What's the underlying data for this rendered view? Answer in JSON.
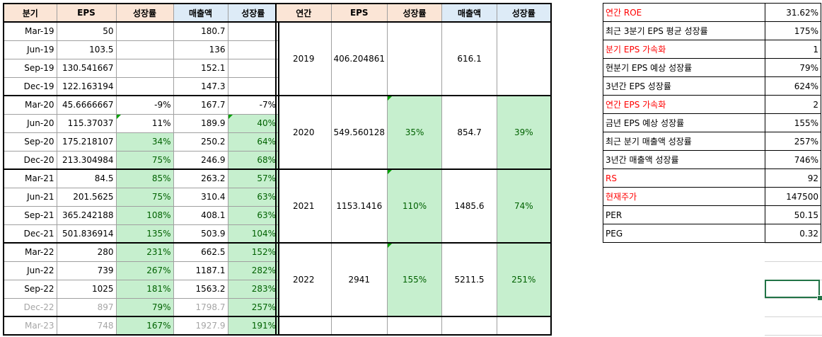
{
  "quarterly": {
    "headers": [
      "분기",
      "EPS",
      "성장률",
      "매출액",
      "성장률"
    ],
    "rows": [
      {
        "quarter": "Mar-19",
        "eps": "50",
        "eps_growth": "",
        "sales": "180.7",
        "sales_growth": ""
      },
      {
        "quarter": "Jun-19",
        "eps": "103.5",
        "eps_growth": "",
        "sales": "136",
        "sales_growth": ""
      },
      {
        "quarter": "Sep-19",
        "eps": "130.541667",
        "eps_growth": "",
        "sales": "152.1",
        "sales_growth": ""
      },
      {
        "quarter": "Dec-19",
        "eps": "122.163194",
        "eps_growth": "",
        "sales": "147.3",
        "sales_growth": ""
      },
      {
        "quarter": "Mar-20",
        "eps": "45.6666667",
        "eps_growth": "-9%",
        "sales": "167.7",
        "sales_growth": "-7%"
      },
      {
        "quarter": "Jun-20",
        "eps": "115.37037",
        "eps_growth": "11%",
        "sales": "189.9",
        "sales_growth": "40%"
      },
      {
        "quarter": "Sep-20",
        "eps": "175.218107",
        "eps_growth": "34%",
        "sales": "250.2",
        "sales_growth": "64%"
      },
      {
        "quarter": "Dec-20",
        "eps": "213.304984",
        "eps_growth": "75%",
        "sales": "246.9",
        "sales_growth": "68%"
      },
      {
        "quarter": "Mar-21",
        "eps": "84.5",
        "eps_growth": "85%",
        "sales": "263.2",
        "sales_growth": "57%"
      },
      {
        "quarter": "Jun-21",
        "eps": "201.5625",
        "eps_growth": "75%",
        "sales": "310.4",
        "sales_growth": "63%"
      },
      {
        "quarter": "Sep-21",
        "eps": "365.242188",
        "eps_growth": "108%",
        "sales": "408.1",
        "sales_growth": "63%"
      },
      {
        "quarter": "Dec-21",
        "eps": "501.836914",
        "eps_growth": "135%",
        "sales": "503.9",
        "sales_growth": "104%"
      },
      {
        "quarter": "Mar-22",
        "eps": "280",
        "eps_growth": "231%",
        "sales": "662.5",
        "sales_growth": "152%"
      },
      {
        "quarter": "Jun-22",
        "eps": "739",
        "eps_growth": "267%",
        "sales": "1187.1",
        "sales_growth": "282%"
      },
      {
        "quarter": "Sep-22",
        "eps": "1025",
        "eps_growth": "181%",
        "sales": "1563.2",
        "sales_growth": "283%"
      },
      {
        "quarter": "Dec-22",
        "eps": "897",
        "eps_growth": "79%",
        "sales": "1798.7",
        "sales_growth": "257%"
      },
      {
        "quarter": "Mar-23",
        "eps": "748",
        "eps_growth": "167%",
        "sales": "1927.9",
        "sales_growth": "191%"
      }
    ]
  },
  "annual": {
    "headers": [
      "연간",
      "EPS",
      "성장률",
      "매출액",
      "성장률"
    ],
    "rows": [
      {
        "year": "2019",
        "eps": "406.204861",
        "eps_growth": "",
        "sales": "616.1",
        "sales_growth": ""
      },
      {
        "year": "2020",
        "eps": "549.560128",
        "eps_growth": "35%",
        "sales": "854.7",
        "sales_growth": "39%"
      },
      {
        "year": "2021",
        "eps": "1153.1416",
        "eps_growth": "110%",
        "sales": "1485.6",
        "sales_growth": "74%"
      },
      {
        "year": "2022",
        "eps": "2941",
        "eps_growth": "155%",
        "sales": "5211.5",
        "sales_growth": "251%"
      }
    ]
  },
  "metrics": [
    {
      "label": "연간 ROE",
      "value": "31.62%"
    },
    {
      "label": "최근 3분기 EPS 평균 성장률",
      "value": "175%"
    },
    {
      "label": "분기 EPS 가속화",
      "value": "1"
    },
    {
      "label": "현분기 EPS 예상 성장률",
      "value": "79%"
    },
    {
      "label": "3년간 EPS 성장률",
      "value": "624%"
    },
    {
      "label": "연간 EPS 가속화",
      "value": "2"
    },
    {
      "label": "금년 EPS 예상 성장률",
      "value": "155%"
    },
    {
      "label": "최근 분기 매출액 성장률",
      "value": "257%"
    },
    {
      "label": "3년간 매출액 성장률",
      "value": "746%"
    },
    {
      "label": "RS",
      "value": "92"
    },
    {
      "label": "현재주가",
      "value": "147500"
    },
    {
      "label": "PER",
      "value": "50.15"
    },
    {
      "label": "PEG",
      "value": "0.32"
    }
  ],
  "colors": {
    "header_tan": "#fbe5d6",
    "header_blue": "#ddebf7",
    "positive_fill": "#c6efce",
    "positive_text": "#006100",
    "red_label": "#ff0000",
    "estimate_text": "#a6a6a6",
    "selection": "#217346"
  }
}
